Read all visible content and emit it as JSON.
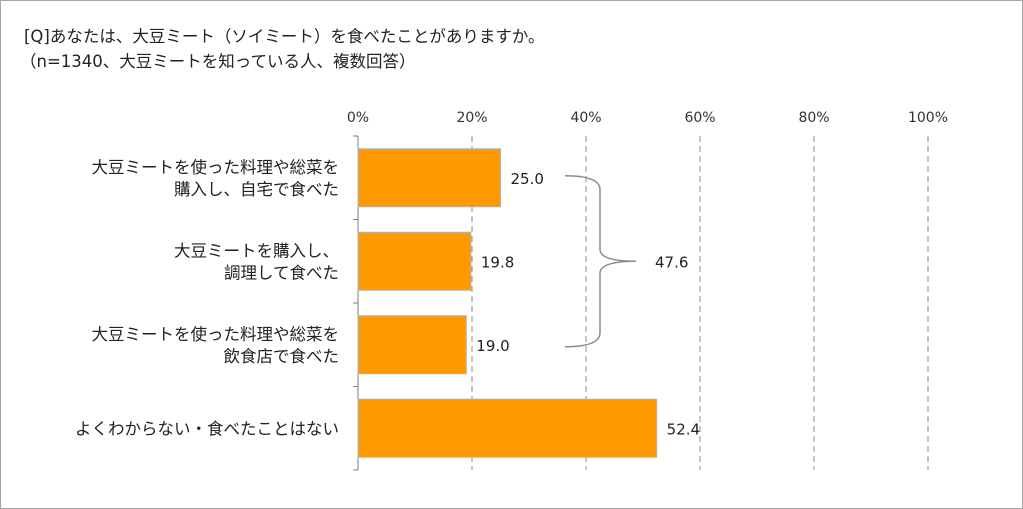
{
  "question": "[Q]あなたは、大豆ミート（ソイミート）を食べたことがありますか。",
  "note": "（n=1340、大豆ミートを知っている人、複数回答）",
  "bracket_total": "47.6",
  "colors": {
    "bar": "#ff9900",
    "bar_border": "#b3b3b3",
    "grid": "#8c8c8c"
  },
  "chart_data": {
    "type": "bar",
    "orientation": "horizontal",
    "title": "",
    "xlabel": "",
    "ylabel": "",
    "xlim": [
      0,
      100
    ],
    "x_ticks": [
      "0%",
      "20%",
      "40%",
      "60%",
      "80%",
      "100%"
    ],
    "categories": [
      [
        "大豆ミートを使った料理や総菜を",
        "購入し、自宅で食べた"
      ],
      [
        "大豆ミートを購入し、",
        "調理して食べた"
      ],
      [
        "大豆ミートを使った料理や総菜を",
        "飲食店で食べた"
      ],
      [
        "よくわからない・食べたことはない"
      ]
    ],
    "values": [
      25.0,
      19.8,
      19.0,
      52.4
    ],
    "value_labels": [
      "25.0",
      "19.8",
      "19.0",
      "52.4"
    ],
    "grid": true,
    "legend": "none"
  }
}
